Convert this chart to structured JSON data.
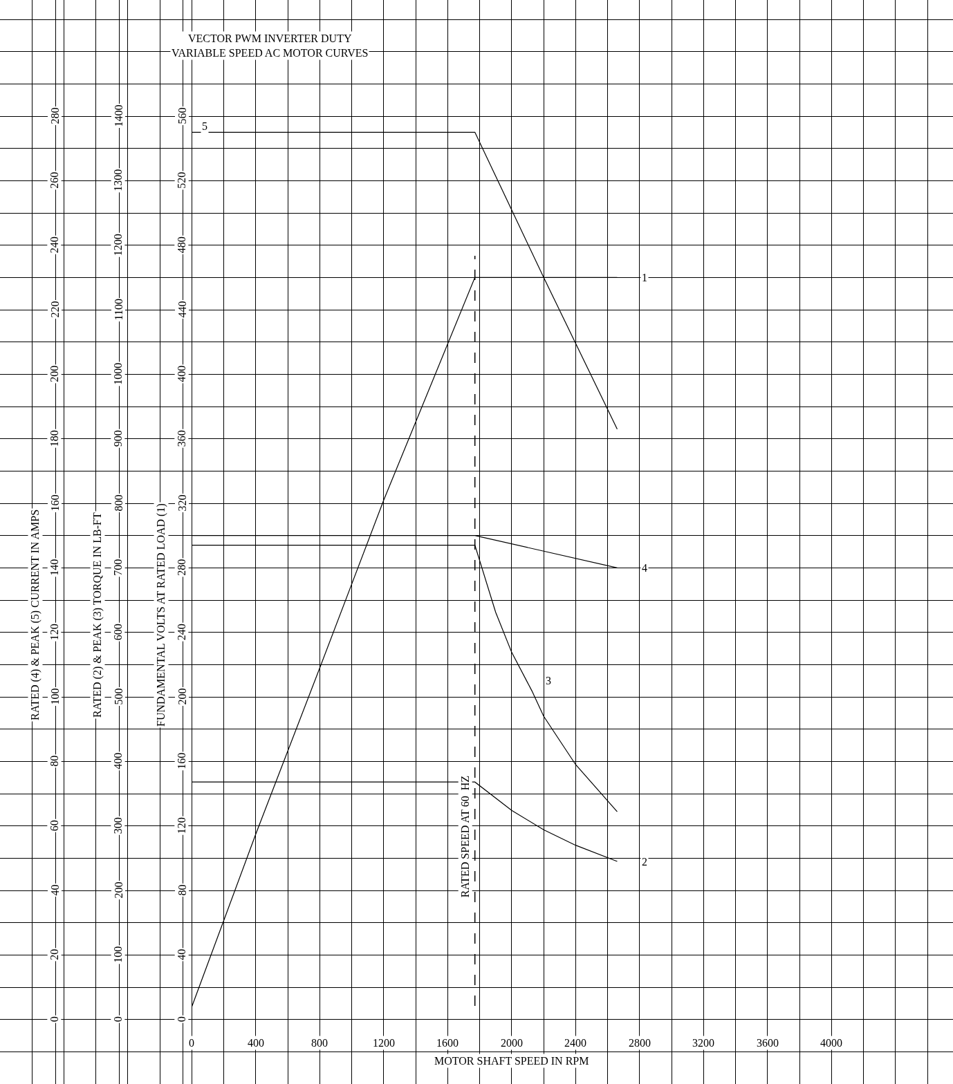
{
  "chart_data": {
    "type": "line",
    "title": "VECTOR PWM INVERTER DUTY\nVARIABLE SPEED AC MOTOR CURVES",
    "xlabel": "MOTOR SHAFT SPEED IN RPM",
    "ylabel": "RATED (4) & PEAK (5) CURRENT IN AMPS",
    "y2label": "RATED (2) & PEAK (3) TORQUE IN LB-FT",
    "y3label": "FUNDAMENTAL VOLTS AT RATED LOAD (1)",
    "xlim": [
      -1200,
      4760
    ],
    "xticks": [
      {
        "value": -1000,
        "label": null
      },
      {
        "value": -800,
        "label": null
      },
      {
        "value": -600,
        "label": null
      },
      {
        "value": -400,
        "label": null
      },
      {
        "value": -200,
        "label": null
      },
      0,
      {
        "value": 200,
        "label": null
      },
      400,
      {
        "value": 600,
        "label": null
      },
      800,
      {
        "value": 1000,
        "label": null
      },
      1200,
      {
        "value": 1400,
        "label": null
      },
      1600,
      {
        "value": 1800,
        "label": null
      },
      2000,
      {
        "value": 2200,
        "label": null
      },
      2400,
      {
        "value": 2600,
        "label": null
      },
      2800,
      {
        "value": 3000,
        "label": null
      },
      3200,
      {
        "value": 3400,
        "label": null
      },
      3600,
      {
        "value": 3800,
        "label": null
      },
      4000,
      {
        "value": 4200,
        "label": null
      },
      {
        "value": 4400,
        "label": null
      },
      {
        "value": 4600,
        "label": null
      }
    ],
    "ylim": [
      -20,
      316
    ],
    "yticks": [
      {
        "value": -10,
        "label": null
      },
      0,
      {
        "value": 10,
        "label": null
      },
      20,
      {
        "value": 30,
        "label": null
      },
      40,
      {
        "value": 50,
        "label": null
      },
      60,
      {
        "value": 70,
        "label": null
      },
      80,
      {
        "value": 90,
        "label": null
      },
      100,
      {
        "value": 110,
        "label": null
      },
      120,
      {
        "value": 130,
        "label": null
      },
      140,
      {
        "value": 150,
        "label": null
      },
      160,
      {
        "value": 170,
        "label": null
      },
      180,
      {
        "value": 190,
        "label": null
      },
      200,
      {
        "value": 210,
        "label": null
      },
      220,
      {
        "value": 230,
        "label": null
      },
      240,
      {
        "value": 250,
        "label": null
      },
      260,
      {
        "value": 270,
        "label": null
      },
      280,
      {
        "value": 290,
        "label": null
      },
      {
        "value": 300,
        "label": null
      },
      {
        "value": 310,
        "label": null
      }
    ],
    "y2lim": [
      -100,
      1580
    ],
    "y2ticks": [
      0,
      100,
      200,
      300,
      400,
      500,
      600,
      700,
      800,
      900,
      1000,
      1100,
      1200,
      1300,
      1400
    ],
    "y3lim": [
      -40,
      632
    ],
    "y3ticks": [
      0,
      40,
      80,
      120,
      160,
      200,
      240,
      280,
      320,
      360,
      400,
      440,
      480,
      520,
      560
    ],
    "grid": true,
    "marker": "none",
    "line_style": "solid",
    "series": [
      {
        "color": "#000000",
        "axis": "y3",
        "x": [
          0,
          400,
          800,
          1200,
          1770,
          2660
        ],
        "values": [
          8,
          115,
          218,
          322,
          460,
          460
        ]
      },
      {
        "color": "#000000",
        "axis": "y2",
        "x": [
          0,
          1770,
          2000,
          2200,
          2400,
          2660
        ],
        "values": [
          368,
          368,
          324,
          294,
          270,
          245
        ]
      },
      {
        "color": "#000000",
        "axis": "y2",
        "x": [
          0,
          1770,
          1900,
          2000,
          2127,
          2200,
          2400,
          2660
        ],
        "values": [
          735,
          735,
          631,
          569,
          509,
          470,
          395,
          322
        ]
      },
      {
        "color": "#000000",
        "axis": "y",
        "x": [
          0,
          1770,
          2660
        ],
        "values": [
          150,
          150,
          140
        ]
      },
      {
        "color": "#000000",
        "axis": "y",
        "x": [
          0,
          1770,
          2200,
          2660
        ],
        "values": [
          275,
          275,
          230,
          183
        ]
      }
    ],
    "ref_lines": [
      {
        "axis": "x",
        "value": 1770,
        "label": "RATED SPEED AT 60  HZ",
        "line_style": "dashed",
        "color": "#000000"
      }
    ],
    "annotations": [
      {
        "text": "1",
        "x": 2830,
        "y": 230
      },
      {
        "text": "2",
        "x": 2830,
        "y": 49
      },
      {
        "text": "3",
        "x": 2230,
        "y": 105
      },
      {
        "text": "4",
        "x": 2830,
        "y": 140
      },
      {
        "text": "5",
        "x": 80,
        "y": 277
      }
    ]
  }
}
